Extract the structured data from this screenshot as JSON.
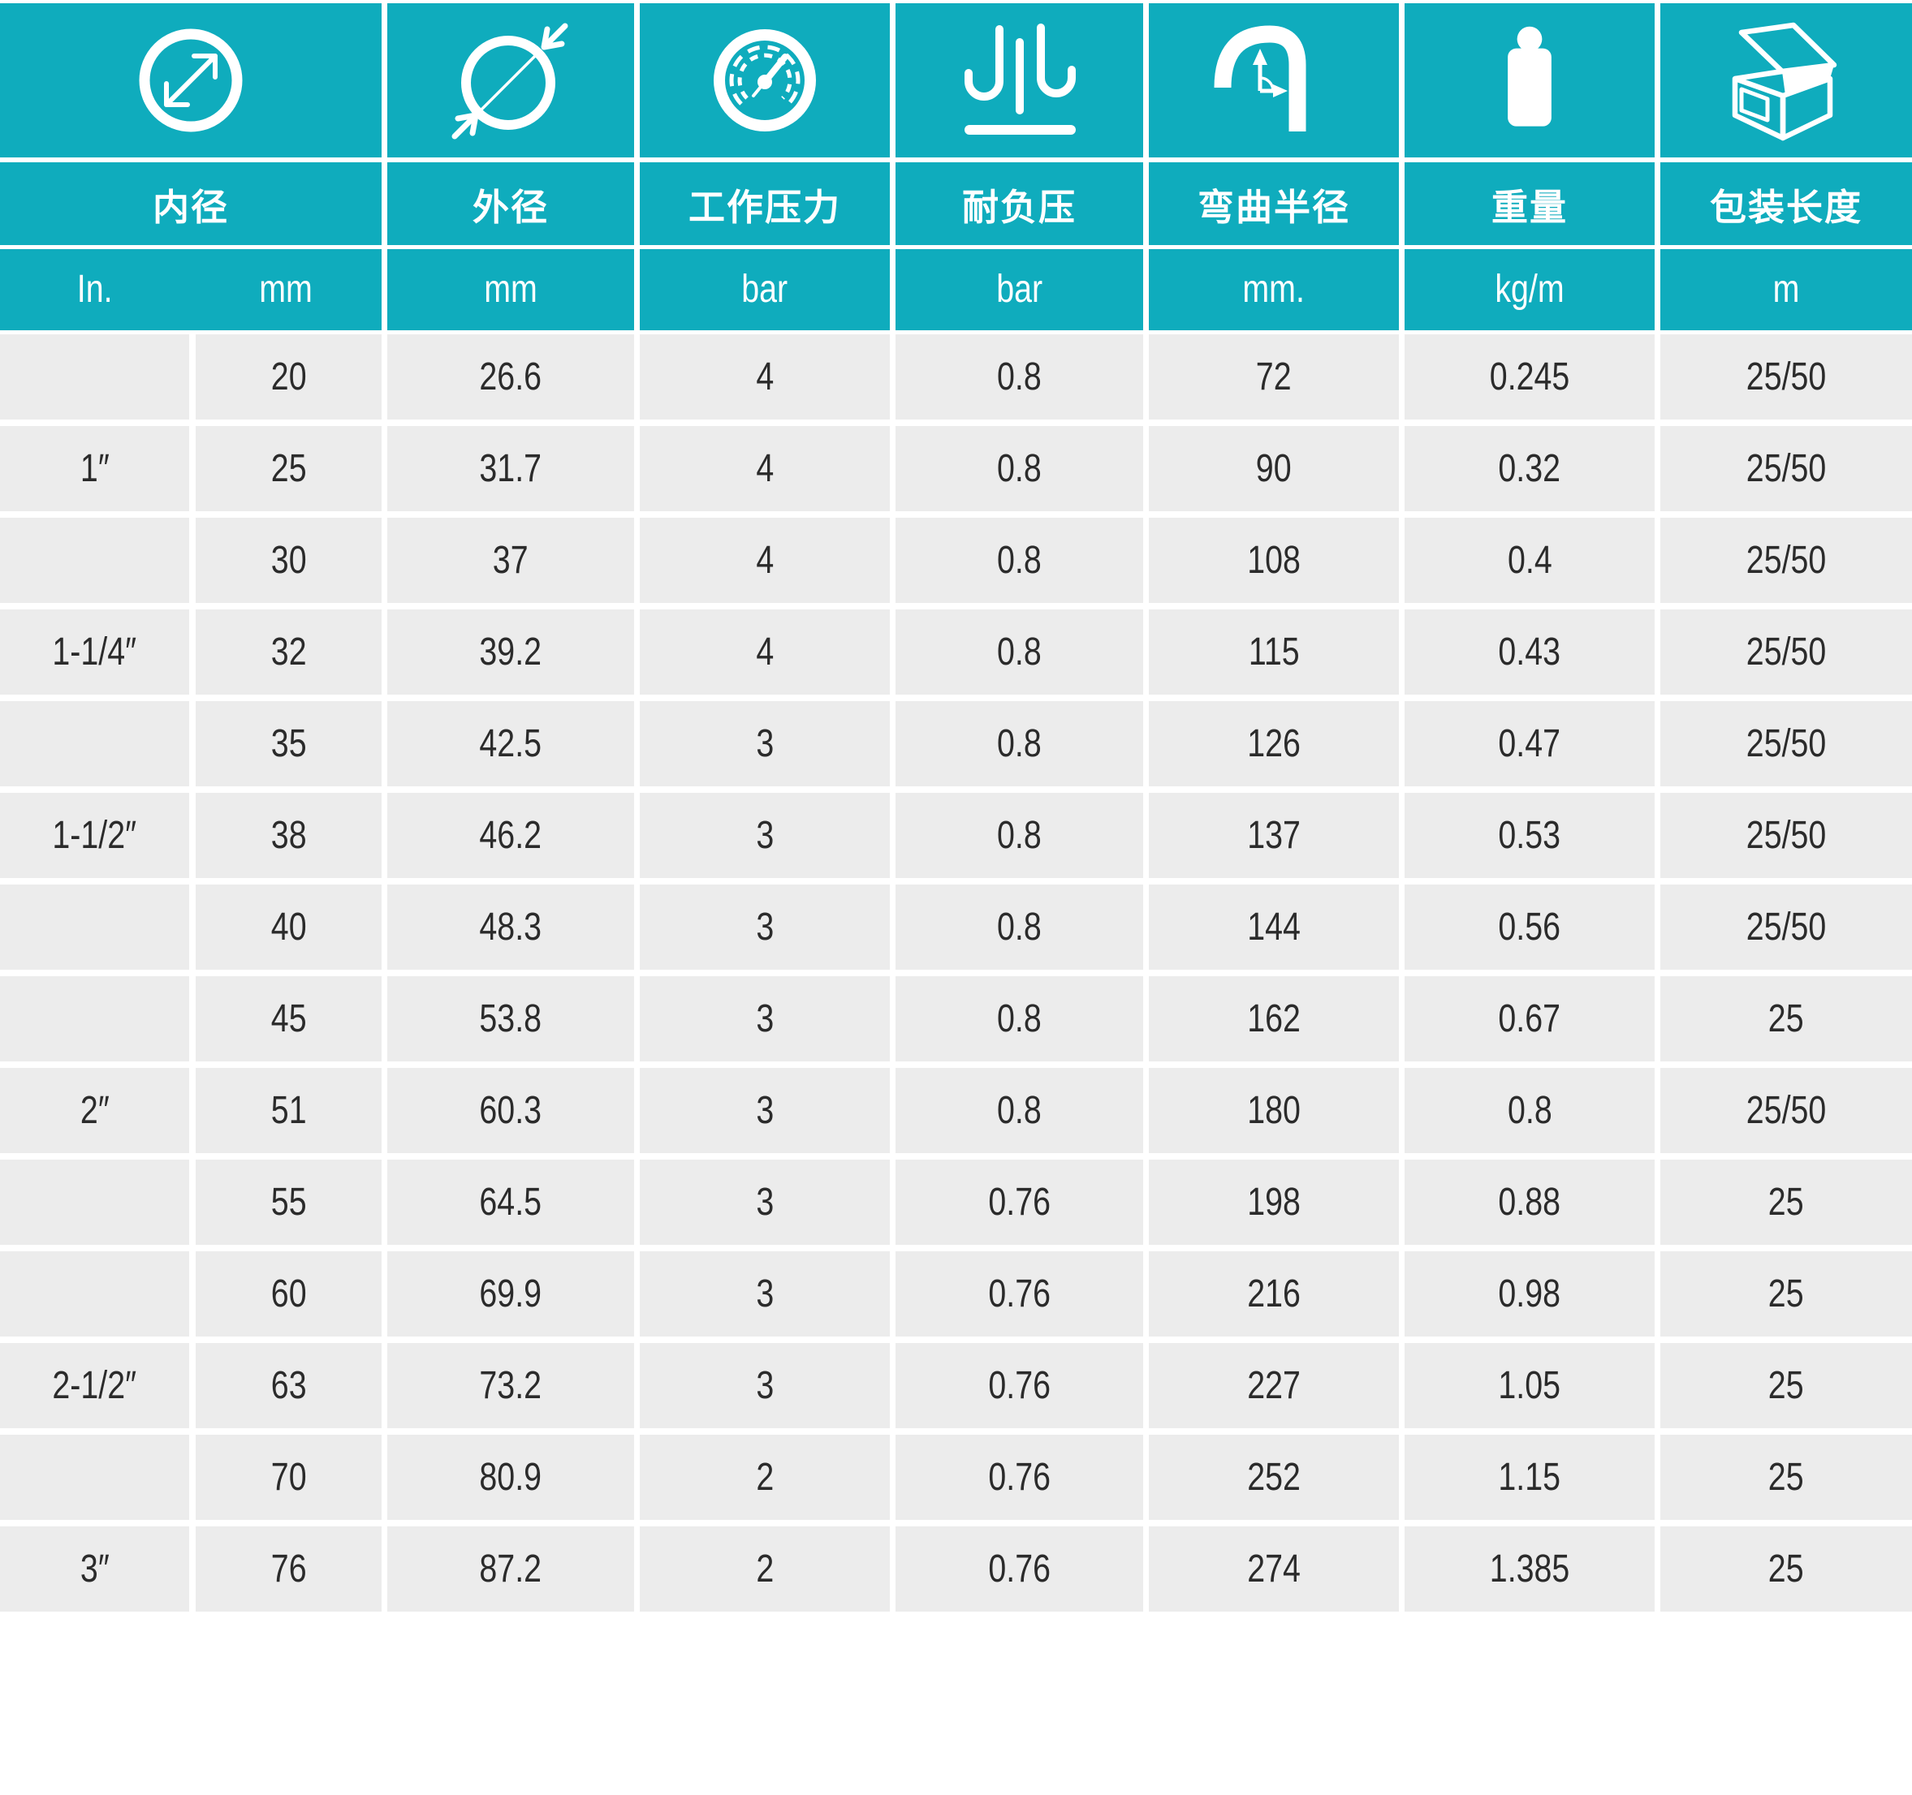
{
  "colors": {
    "teal": "#0FACBD",
    "cell_bg": "#ECECEC",
    "value_text": "#2B2B2B",
    "header_text": "#FFFFFF",
    "background": "#FFFFFF"
  },
  "table": {
    "columns": [
      {
        "key": "inner-diameter",
        "title": "内径",
        "icon": "inner-diameter-icon",
        "units": [
          "In.",
          "mm"
        ]
      },
      {
        "key": "outer-diameter",
        "title": "外径",
        "icon": "outer-diameter-icon",
        "units": [
          "mm"
        ]
      },
      {
        "key": "working-pressure",
        "title": "工作压力",
        "icon": "pressure-gauge-icon",
        "units": [
          "bar"
        ]
      },
      {
        "key": "vacuum-resistance",
        "title": "耐负压",
        "icon": "vacuum-resistance-icon",
        "units": [
          "bar"
        ]
      },
      {
        "key": "bend-radius",
        "title": "弯曲半径",
        "icon": "bend-radius-icon",
        "units": [
          "mm."
        ]
      },
      {
        "key": "weight",
        "title": "重量",
        "icon": "weight-icon",
        "units": [
          "kg/m"
        ]
      },
      {
        "key": "package-length",
        "title": "包装长度",
        "icon": "package-box-icon",
        "units": [
          "m"
        ]
      }
    ],
    "rows": [
      [
        "",
        "20",
        "26.6",
        "4",
        "0.8",
        "72",
        "0.245",
        "25/50"
      ],
      [
        "1″",
        "25",
        "31.7",
        "4",
        "0.8",
        "90",
        "0.32",
        "25/50"
      ],
      [
        "",
        "30",
        "37",
        "4",
        "0.8",
        "108",
        "0.4",
        "25/50"
      ],
      [
        "1-1/4″",
        "32",
        "39.2",
        "4",
        "0.8",
        "115",
        "0.43",
        "25/50"
      ],
      [
        "",
        "35",
        "42.5",
        "3",
        "0.8",
        "126",
        "0.47",
        "25/50"
      ],
      [
        "1-1/2″",
        "38",
        "46.2",
        "3",
        "0.8",
        "137",
        "0.53",
        "25/50"
      ],
      [
        "",
        "40",
        "48.3",
        "3",
        "0.8",
        "144",
        "0.56",
        "25/50"
      ],
      [
        "",
        "45",
        "53.8",
        "3",
        "0.8",
        "162",
        "0.67",
        "25"
      ],
      [
        "2″",
        "51",
        "60.3",
        "3",
        "0.8",
        "180",
        "0.8",
        "25/50"
      ],
      [
        "",
        "55",
        "64.5",
        "3",
        "0.76",
        "198",
        "0.88",
        "25"
      ],
      [
        "",
        "60",
        "69.9",
        "3",
        "0.76",
        "216",
        "0.98",
        "25"
      ],
      [
        "2-1/2″",
        "63",
        "73.2",
        "3",
        "0.76",
        "227",
        "1.05",
        "25"
      ],
      [
        "",
        "70",
        "80.9",
        "2",
        "0.76",
        "252",
        "1.15",
        "25"
      ],
      [
        "3″",
        "76",
        "87.2",
        "2",
        "0.76",
        "274",
        "1.385",
        "25"
      ]
    ]
  }
}
